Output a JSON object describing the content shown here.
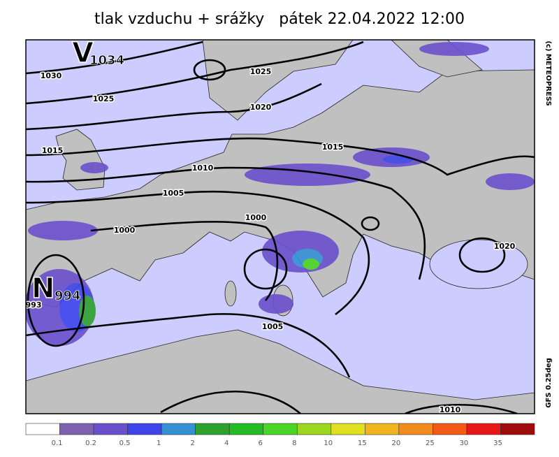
{
  "header": {
    "title": "tlak vzduchu + srážky   pátek 22.04.2022 12:00"
  },
  "side": {
    "copyright": "(c) METEOPRESS",
    "model": "GFS 0.25deg"
  },
  "centers": [
    {
      "letter": "V",
      "value": "1034"
    },
    {
      "letter": "N",
      "value": "994"
    }
  ],
  "isobar_labels": [
    "1030",
    "1025",
    "1025",
    "1020",
    "1015",
    "1015",
    "1010",
    "1005",
    "1000",
    "1000",
    "1020",
    "1005",
    "1010",
    "993"
  ],
  "colorbar": {
    "colors": [
      "#ffffff",
      "#7e62b0",
      "#6a50cc",
      "#3c44ea",
      "#3590d4",
      "#2ea02e",
      "#24bb24",
      "#4ad626",
      "#9cd61e",
      "#e0e01e",
      "#f2b41e",
      "#f28c1e",
      "#f25a16",
      "#e81616",
      "#a00c0c"
    ],
    "labels": [
      0.1,
      0.2,
      0.5,
      1,
      2,
      4,
      6,
      8,
      10,
      15,
      20,
      25,
      30,
      35
    ]
  }
}
